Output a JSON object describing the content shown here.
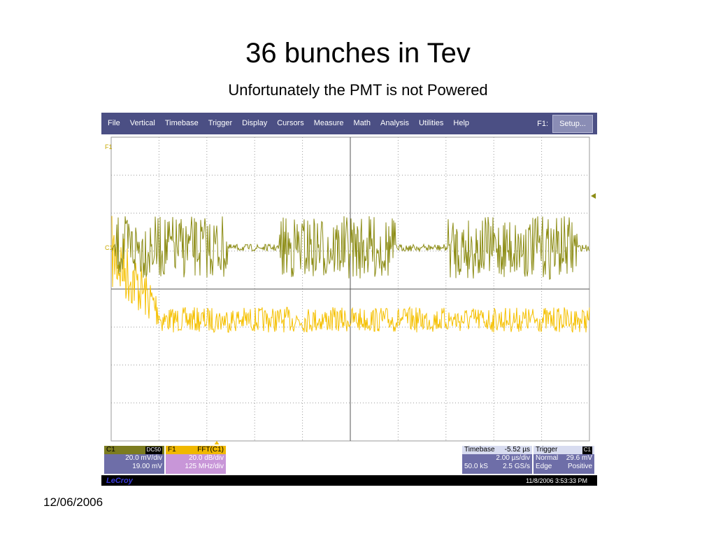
{
  "slide": {
    "title": "36 bunches in Tev",
    "subtitle": "Unfortunately the PMT is not Powered",
    "date": "12/06/2006"
  },
  "scope": {
    "menu": [
      "File",
      "Vertical",
      "Timebase",
      "Trigger",
      "Display",
      "Cursors",
      "Measure",
      "Math",
      "Analysis",
      "Utilities",
      "Help"
    ],
    "f1_label": "F1:",
    "setup_button": "Setup...",
    "trace_labels": {
      "f1": "F1",
      "c1": "C1"
    },
    "colors": {
      "menubar": "#4b4f84",
      "c1_trace": "#8c8c14",
      "f1_trace": "#f5c000",
      "grid": "#9a9a9a"
    },
    "channel_c1": {
      "name": "C1",
      "coupling": "DC50",
      "volts_div": "20.0 mV/div",
      "offset": "19.00 mV"
    },
    "channel_f1": {
      "name": "F1",
      "function": "FFT(C1)",
      "scale": "20.0 dB/div",
      "freq_div": "125 MHz/div"
    },
    "timebase": {
      "label": "Timebase",
      "delay": "-5.52 µs",
      "time_div": "2.00 µs/div",
      "samples": "50.0 kS",
      "rate": "2.5 GS/s"
    },
    "trigger": {
      "label": "Trigger",
      "channel_tag": "C1",
      "mode": "Normal",
      "level": "29.6 mV",
      "type": "Edge",
      "slope": "Positive"
    },
    "brand": "LeCroy",
    "timestamp": "11/8/2006 3:53:33 PM"
  }
}
